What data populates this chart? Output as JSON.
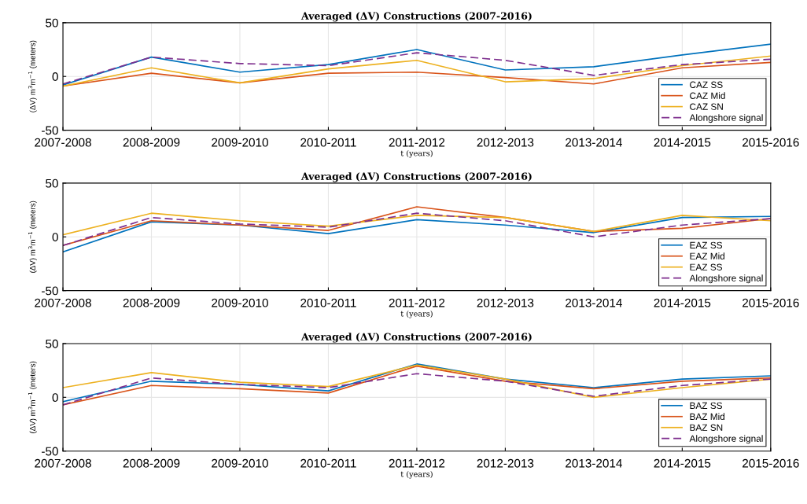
{
  "chart_data": [
    {
      "type": "line",
      "title": "Averaged (ΔV) Constructions (2007-2016)",
      "xlabel": "t (years)",
      "ylabel": "(ΔV) m$^{3}$m$^{−1}$ (meters)",
      "categories": [
        "2007-2008",
        "2008-2009",
        "2009-2010",
        "2010-2011",
        "2011-2012",
        "2012-2013",
        "2013-2014",
        "2014-2015",
        "2015-2016"
      ],
      "ylim": [
        -50,
        50
      ],
      "yticks": [
        -50,
        0,
        50
      ],
      "grid": true,
      "legend": "bottom right",
      "series": [
        {
          "name": "CAZ SS",
          "color": "#0072bd",
          "values": [
            -8,
            18,
            4,
            11,
            25,
            6,
            9,
            20,
            30
          ]
        },
        {
          "name": "CAZ Mid",
          "color": "#d95319",
          "values": [
            -9,
            3,
            -6,
            3,
            4,
            -1,
            -7,
            8,
            13
          ]
        },
        {
          "name": "CAZ SN",
          "color": "#edb120",
          "values": [
            -9,
            8,
            -6,
            7,
            15,
            -5,
            -2,
            10,
            19
          ]
        },
        {
          "name": "Alongshore signal",
          "color": "#7e2f8e",
          "line_style": "dashed",
          "values": [
            -7,
            18,
            12,
            10,
            22,
            15,
            1,
            11,
            16
          ]
        }
      ]
    },
    {
      "type": "line",
      "title": "Averaged (ΔV) Constructions (2007-2016)",
      "xlabel": "t (years)",
      "ylabel": "(ΔV) m$^{3}$m$^{−1}$ (meters)",
      "categories": [
        "2007-2008",
        "2008-2009",
        "2009-2010",
        "2010-2011",
        "2011-2012",
        "2012-2013",
        "2013-2014",
        "2014-2015",
        "2015-2016"
      ],
      "ylim": [
        -50,
        50
      ],
      "yticks": [
        -50,
        0,
        50
      ],
      "grid": true,
      "legend": "bottom right",
      "series": [
        {
          "name": "EAZ SS",
          "color": "#0072bd",
          "values": [
            -14,
            14,
            11,
            3,
            16,
            11,
            4,
            18,
            19
          ]
        },
        {
          "name": "EAZ Mid",
          "color": "#d95319",
          "values": [
            -8,
            15,
            11,
            6,
            28,
            18,
            5,
            8,
            17
          ]
        },
        {
          "name": "EAZ SS",
          "color": "#edb120",
          "values": [
            2,
            22,
            15,
            10,
            20,
            18,
            5,
            20,
            15
          ]
        },
        {
          "name": "Alongshore signal",
          "color": "#7e2f8e",
          "line_style": "dashed",
          "values": [
            -8,
            18,
            12,
            9,
            22,
            15,
            0,
            11,
            17
          ]
        }
      ]
    },
    {
      "type": "line",
      "title": "Averaged (ΔV) Constructions (2007-2016)",
      "xlabel": "t (years)",
      "ylabel": "(ΔV) m$^{3}$m$^{−1}$ (meters)",
      "categories": [
        "2007-2008",
        "2008-2009",
        "2009-2010",
        "2010-2011",
        "2011-2012",
        "2012-2013",
        "2013-2014",
        "2014-2015",
        "2015-2016"
      ],
      "ylim": [
        -50,
        50
      ],
      "yticks": [
        -50,
        0,
        50
      ],
      "grid": true,
      "legend": "bottom right",
      "series": [
        {
          "name": "BAZ SS",
          "color": "#0072bd",
          "values": [
            -4,
            15,
            12,
            6,
            31,
            17,
            9,
            17,
            20
          ]
        },
        {
          "name": "BAZ Mid",
          "color": "#d95319",
          "values": [
            -7,
            11,
            8,
            4,
            29,
            15,
            8,
            15,
            18
          ]
        },
        {
          "name": "BAZ SN",
          "color": "#edb120",
          "values": [
            9,
            23,
            14,
            10,
            30,
            17,
            0,
            9,
            17
          ]
        },
        {
          "name": "Alongshore signal",
          "color": "#7e2f8e",
          "line_style": "dashed",
          "values": [
            -7,
            18,
            12,
            9,
            22,
            15,
            1,
            11,
            17
          ]
        }
      ]
    }
  ]
}
